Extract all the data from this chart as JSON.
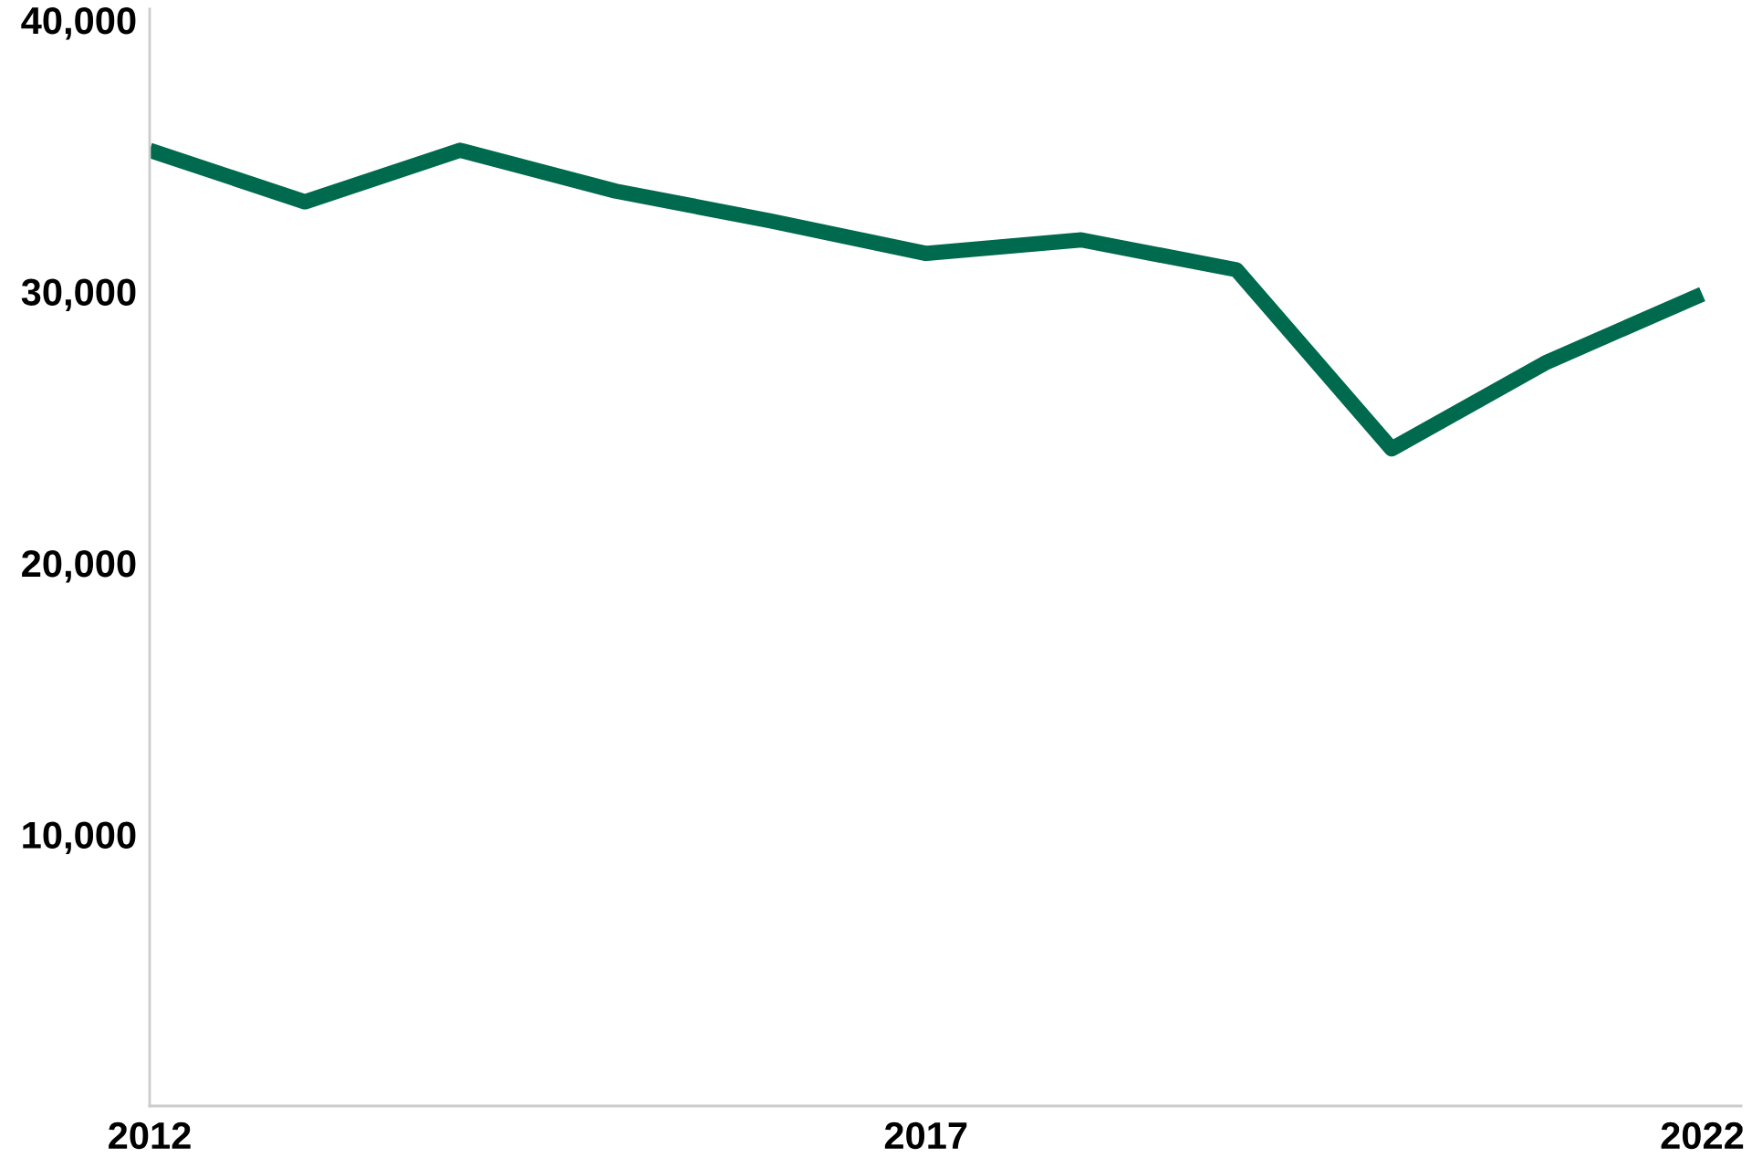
{
  "chart_data": {
    "type": "line",
    "x": [
      2012,
      2013,
      2014,
      2015,
      2016,
      2017,
      2018,
      2019,
      2020,
      2021,
      2022
    ],
    "series": [
      {
        "color": "#006a4e",
        "values": [
          35200,
          33300,
          35200,
          33700,
          32600,
          31400,
          31900,
          30800,
          24200,
          27400,
          29900
        ]
      }
    ],
    "xlim": [
      2012,
      2022.25
    ],
    "xticks": [
      2012,
      2017,
      2022
    ],
    "ylim": [
      0,
      40400
    ],
    "yticks": [
      {
        "value": 10000,
        "label": "10,000"
      },
      {
        "value": 20000,
        "label": "20,000"
      },
      {
        "value": 30000,
        "label": "30,000"
      },
      {
        "value": 40000,
        "label": "40,000"
      }
    ]
  }
}
